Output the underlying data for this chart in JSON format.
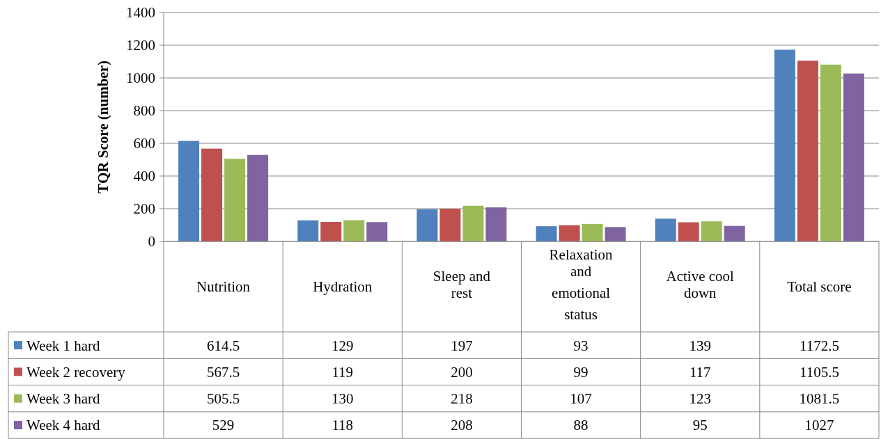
{
  "chart_data": {
    "type": "bar",
    "ylabel": "TQR Score (number)",
    "categories": [
      "Nutrition",
      "Hydration",
      "Sleep and rest",
      "Relaxation and emotional status",
      "Active cool down",
      "Total score"
    ],
    "series": [
      {
        "name": "Week 1 hard",
        "color": "#4f81bd",
        "values": [
          614.5,
          129,
          197,
          93,
          139,
          1172.5
        ]
      },
      {
        "name": "Week 2 recovery",
        "color": "#c0504d",
        "values": [
          567.5,
          119,
          200,
          99,
          117,
          1105.5
        ]
      },
      {
        "name": "Week 3 hard",
        "color": "#9bbb59",
        "values": [
          505.5,
          130,
          218,
          107,
          123,
          1081.5
        ]
      },
      {
        "name": "Week 4 hard",
        "color": "#8064a2",
        "values": [
          529,
          118,
          208,
          88,
          95,
          1027
        ]
      }
    ],
    "ylim": [
      0,
      1400
    ],
    "yticks": [
      0,
      200,
      400,
      600,
      800,
      1000,
      1200,
      1400
    ],
    "grid": "y",
    "legend": "bottom",
    "data_labels": true
  }
}
